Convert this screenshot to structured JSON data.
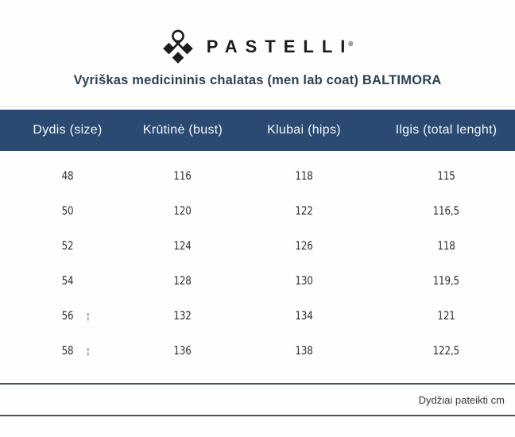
{
  "brand": {
    "name": "PASTELLI",
    "registered": "®",
    "logo_icon": "pastelli-knot-diamonds-icon",
    "logo_color": "#1c1c1c"
  },
  "title": "Vyriškas medicininis chalatas (men lab coat) BALTIMORA",
  "table": {
    "headers": [
      "Dydis (size)",
      "Krūtinė (bust)",
      "Klubai (hips)",
      "Ilgis (total lenght)"
    ],
    "rows": [
      {
        "size": "48",
        "bust": "116",
        "hips": "118",
        "length": "115",
        "artifact": ""
      },
      {
        "size": "50",
        "bust": "120",
        "hips": "122",
        "length": "116,5",
        "artifact": ""
      },
      {
        "size": "52",
        "bust": "124",
        "hips": "126",
        "length": "118",
        "artifact": ""
      },
      {
        "size": "54",
        "bust": "128",
        "hips": "130",
        "length": "119,5",
        "artifact": ""
      },
      {
        "size": "56",
        "bust": "132",
        "hips": "134",
        "length": "121",
        "artifact": "¦"
      },
      {
        "size": "58",
        "bust": "136",
        "hips": "138",
        "length": "122,5",
        "artifact": "¦"
      }
    ],
    "footnote": "Dydžiai pateikti cm"
  },
  "chart_data": {
    "type": "table",
    "title": "Vyriškas medicininis chalatas (men lab coat) BALTIMORA",
    "columns": [
      "Dydis (size)",
      "Krūtinė (bust)",
      "Klubai (hips)",
      "Ilgis (total lenght)"
    ],
    "rows": [
      [
        48,
        116,
        118,
        115
      ],
      [
        50,
        120,
        122,
        116.5
      ],
      [
        52,
        124,
        126,
        118
      ],
      [
        54,
        128,
        130,
        119.5
      ],
      [
        56,
        132,
        134,
        121
      ],
      [
        58,
        136,
        138,
        122.5
      ]
    ],
    "units": "cm",
    "footnote": "Dydžiai pateikti cm"
  },
  "colors": {
    "header_bg": "#2a4a72",
    "header_text": "#f5f8fb",
    "title_text": "#2c4055",
    "body_text": "#2d2d2d",
    "rule": "#3f565e"
  }
}
